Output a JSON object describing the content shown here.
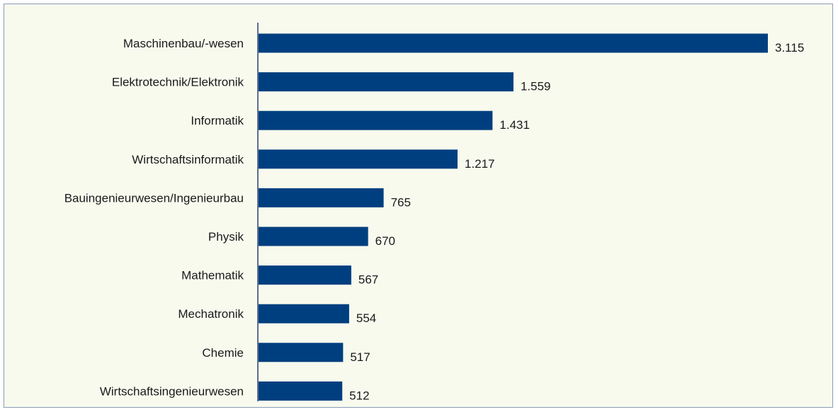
{
  "chart_data": {
    "type": "bar",
    "orientation": "horizontal",
    "categories": [
      "Maschinenbau/-wesen",
      "Elektrotechnik/Elektronik",
      "Informatik",
      "Wirtschaftsinformatik",
      "Bauingenieurwesen/Ingenieurbau",
      "Physik",
      "Mathematik",
      "Mechatronik",
      "Chemie",
      "Wirtschaftsingenieurwesen"
    ],
    "values": [
      3115,
      1559,
      1431,
      1217,
      765,
      670,
      567,
      554,
      517,
      512
    ],
    "value_labels": [
      "3.115",
      "1.559",
      "1.431",
      "1.217",
      "765",
      "670",
      "567",
      "554",
      "517",
      "512"
    ],
    "title": "",
    "xlabel": "",
    "ylabel": "",
    "xlim": [
      0,
      3115
    ],
    "grid": false,
    "legend": "none",
    "colors": {
      "bar": "#003f7f",
      "axis": "#5a6f8f",
      "background": "#f8faee",
      "border": "#8a9bb8"
    }
  }
}
